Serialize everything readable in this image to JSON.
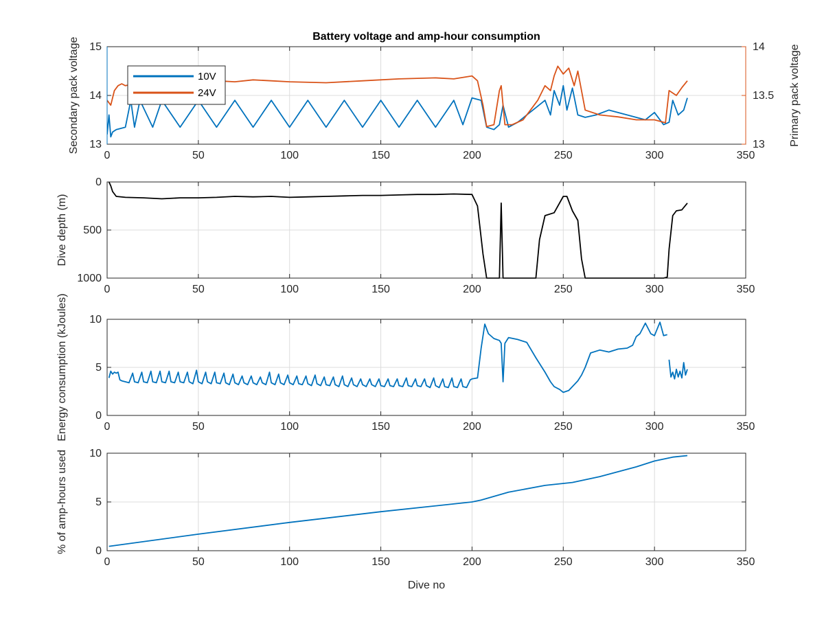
{
  "figure": {
    "title": "Battery voltage and amp-hour consumption"
  },
  "colors": {
    "blue": "#0072BD",
    "orange": "#D95319",
    "black": "#000000",
    "grid": "#dcdcdc",
    "axis": "#262626"
  },
  "chart_data": [
    {
      "type": "line",
      "title": "Battery voltage and amp-hour consumption",
      "xlabel": "",
      "xlim": [
        0,
        350
      ],
      "xticks": [
        0,
        50,
        100,
        150,
        200,
        250,
        300,
        350
      ],
      "ylabel": "Secondary pack voltage",
      "ylim": [
        13,
        15
      ],
      "yticks": [
        13,
        14,
        15
      ],
      "ylabel_right": "Primary pack voltage",
      "ylim_right": [
        13,
        14
      ],
      "yticks_right": [
        13,
        13.5,
        14
      ],
      "grid": true,
      "legend": "top-left",
      "series": [
        {
          "name": "10V",
          "axis": "left",
          "x": [
            0,
            1,
            2,
            3,
            5,
            10,
            13,
            15,
            18,
            25,
            30,
            40,
            50,
            60,
            70,
            80,
            90,
            100,
            110,
            120,
            130,
            140,
            150,
            160,
            170,
            180,
            190,
            195,
            200,
            205,
            208,
            212,
            215,
            217,
            220,
            225,
            230,
            235,
            240,
            243,
            245,
            248,
            250,
            252,
            255,
            258,
            262,
            268,
            275,
            285,
            295,
            300,
            305,
            308,
            310,
            313,
            316,
            318
          ],
          "y": [
            13.2,
            13.6,
            13.15,
            13.25,
            13.3,
            13.35,
            13.9,
            13.35,
            13.9,
            13.35,
            13.9,
            13.35,
            13.9,
            13.35,
            13.9,
            13.35,
            13.9,
            13.35,
            13.9,
            13.35,
            13.9,
            13.35,
            13.9,
            13.35,
            13.9,
            13.35,
            13.9,
            13.4,
            13.95,
            13.9,
            13.35,
            13.3,
            13.4,
            13.8,
            13.35,
            13.45,
            13.6,
            13.75,
            13.9,
            13.6,
            14.1,
            13.8,
            14.2,
            13.7,
            14.15,
            13.6,
            13.55,
            13.6,
            13.7,
            13.6,
            13.5,
            13.65,
            13.4,
            13.45,
            13.9,
            13.6,
            13.7,
            13.95
          ]
        },
        {
          "name": "24V",
          "axis": "right",
          "x": [
            0,
            2,
            4,
            6,
            8,
            10,
            15,
            20,
            30,
            40,
            50,
            60,
            70,
            80,
            90,
            100,
            120,
            140,
            160,
            180,
            190,
            200,
            203,
            206,
            208,
            212,
            215,
            216,
            218,
            222,
            228,
            232,
            236,
            240,
            243,
            245,
            247,
            250,
            253,
            256,
            258,
            262,
            270,
            280,
            290,
            300,
            306,
            308,
            312,
            315,
            318
          ],
          "y": [
            13.45,
            13.4,
            13.55,
            13.6,
            13.62,
            13.6,
            13.62,
            13.61,
            13.63,
            13.62,
            13.64,
            13.65,
            13.64,
            13.66,
            13.65,
            13.64,
            13.63,
            13.65,
            13.67,
            13.68,
            13.67,
            13.7,
            13.65,
            13.4,
            13.18,
            13.2,
            13.55,
            13.6,
            13.2,
            13.2,
            13.25,
            13.35,
            13.45,
            13.6,
            13.55,
            13.7,
            13.8,
            13.72,
            13.78,
            13.6,
            13.75,
            13.35,
            13.3,
            13.28,
            13.25,
            13.25,
            13.22,
            13.55,
            13.5,
            13.58,
            13.65
          ]
        }
      ]
    },
    {
      "type": "line",
      "xlabel": "",
      "xlim": [
        0,
        350
      ],
      "xticks": [
        0,
        50,
        100,
        150,
        200,
        250,
        300,
        350
      ],
      "ylabel": "Dive depth (m)",
      "ylim": [
        0,
        1000
      ],
      "yticks": [
        0,
        500,
        1000
      ],
      "yticklabels": [
        "0",
        "500",
        "1000"
      ],
      "y_reversed": true,
      "grid": true,
      "series": [
        {
          "name": "",
          "x": [
            1,
            2,
            3,
            5,
            10,
            20,
            30,
            40,
            50,
            60,
            70,
            80,
            90,
            100,
            110,
            120,
            130,
            140,
            150,
            160,
            170,
            180,
            190,
            200,
            203,
            206,
            208,
            210,
            212,
            215,
            216,
            217,
            218,
            220,
            230,
            235,
            237,
            240,
            245,
            250,
            252,
            255,
            258,
            260,
            262,
            270,
            280,
            290,
            300,
            305,
            307,
            308,
            310,
            312,
            315,
            318
          ],
          "y": [
            0,
            40,
            100,
            150,
            160,
            165,
            175,
            165,
            165,
            160,
            150,
            155,
            150,
            160,
            155,
            150,
            145,
            140,
            140,
            135,
            130,
            130,
            125,
            130,
            250,
            750,
            1000,
            1000,
            1000,
            1000,
            220,
            1000,
            1000,
            1000,
            1000,
            1000,
            600,
            350,
            320,
            150,
            150,
            300,
            400,
            800,
            1000,
            1000,
            1000,
            1000,
            1000,
            1000,
            990,
            700,
            350,
            300,
            290,
            220
          ]
        }
      ]
    },
    {
      "type": "line",
      "xlabel": "",
      "xlim": [
        0,
        350
      ],
      "xticks": [
        0,
        50,
        100,
        150,
        200,
        250,
        300,
        350
      ],
      "ylabel": "Energy consumption (kJoules)",
      "ylim": [
        0,
        10
      ],
      "yticks": [
        0,
        5,
        10
      ],
      "grid": true,
      "series": [
        {
          "name": "",
          "x": [
            1,
            2,
            3,
            4,
            5,
            6,
            7,
            8,
            10,
            12,
            14,
            15,
            17,
            19,
            20,
            22,
            24,
            25,
            27,
            29,
            30,
            32,
            34,
            35,
            37,
            39,
            40,
            42,
            44,
            45,
            47,
            49,
            50,
            52,
            54,
            55,
            57,
            59,
            60,
            62,
            64,
            65,
            67,
            69,
            70,
            72,
            74,
            75,
            77,
            79,
            80,
            82,
            84,
            85,
            87,
            89,
            90,
            92,
            94,
            95,
            97,
            99,
            100,
            102,
            104,
            105,
            107,
            109,
            110,
            112,
            114,
            115,
            117,
            119,
            120,
            122,
            124,
            125,
            127,
            129,
            130,
            132,
            134,
            135,
            137,
            139,
            140,
            142,
            144,
            145,
            147,
            149,
            150,
            152,
            154,
            155,
            157,
            159,
            160,
            162,
            164,
            165,
            167,
            169,
            170,
            172,
            174,
            175,
            177,
            179,
            180,
            182,
            184,
            185,
            187,
            189,
            190,
            192,
            194,
            195,
            197,
            199,
            200,
            203,
            205,
            207,
            209,
            212,
            215,
            216,
            217,
            218,
            220,
            225,
            230,
            235,
            240,
            243,
            245,
            248,
            250,
            253,
            255,
            258,
            260,
            262,
            265,
            270,
            275,
            280,
            285,
            288,
            290,
            292,
            295,
            298,
            300,
            303,
            305,
            307
          ],
          "y": [
            3.9,
            4.6,
            4.3,
            4.5,
            4.4,
            4.5,
            3.7,
            3.6,
            3.5,
            3.4,
            4.4,
            3.5,
            3.4,
            4.5,
            3.5,
            3.4,
            4.6,
            3.5,
            3.4,
            4.6,
            3.5,
            3.4,
            4.6,
            3.5,
            3.4,
            4.5,
            3.5,
            3.4,
            4.5,
            3.5,
            3.3,
            4.7,
            3.5,
            3.3,
            4.5,
            3.5,
            3.3,
            4.5,
            3.4,
            3.3,
            4.4,
            3.4,
            3.2,
            4.3,
            3.4,
            3.2,
            4.1,
            3.4,
            3.2,
            4.1,
            3.4,
            3.2,
            4.0,
            3.4,
            3.2,
            4.5,
            3.4,
            3.2,
            4.3,
            3.4,
            3.2,
            4.2,
            3.4,
            3.2,
            4.1,
            3.3,
            3.2,
            4.1,
            3.3,
            3.1,
            4.2,
            3.3,
            3.1,
            4.0,
            3.2,
            3.1,
            4.0,
            3.2,
            3.0,
            4.1,
            3.2,
            3.0,
            3.9,
            3.2,
            3.0,
            3.8,
            3.2,
            3.0,
            3.8,
            3.2,
            3.0,
            3.8,
            3.1,
            3.0,
            3.8,
            3.1,
            3.0,
            3.8,
            3.1,
            3.0,
            3.9,
            3.1,
            3.0,
            3.8,
            3.1,
            3.0,
            3.8,
            3.1,
            2.9,
            3.9,
            3.1,
            2.9,
            3.8,
            3.0,
            2.9,
            3.9,
            3.0,
            2.9,
            3.8,
            3.0,
            2.9,
            3.7,
            3.8,
            3.9,
            7.0,
            9.5,
            8.5,
            8.0,
            7.8,
            7.5,
            3.5,
            7.5,
            8.1,
            7.9,
            7.6,
            6.0,
            4.5,
            3.5,
            3.0,
            2.7,
            2.4,
            2.6,
            3.0,
            3.6,
            4.2,
            5.0,
            6.5,
            6.8,
            6.6,
            6.9,
            7.0,
            7.3,
            8.2,
            8.5,
            9.6,
            8.5,
            8.3,
            9.7,
            8.3,
            8.4
          ]
        },
        {
          "name": "",
          "x": [
            308,
            309,
            310,
            311,
            312,
            313,
            314,
            315,
            316,
            317,
            318
          ],
          "y": [
            5.8,
            4.0,
            4.5,
            3.8,
            4.8,
            4.0,
            4.6,
            3.9,
            5.5,
            4.2,
            4.8
          ]
        }
      ]
    },
    {
      "type": "line",
      "xlabel": "Dive no",
      "xlim": [
        0,
        350
      ],
      "xticks": [
        0,
        50,
        100,
        150,
        200,
        250,
        300,
        350
      ],
      "ylabel": "% of amp-hours used",
      "ylim": [
        0,
        10
      ],
      "yticks": [
        0,
        5,
        10
      ],
      "grid": true,
      "series": [
        {
          "name": "",
          "x": [
            1,
            50,
            100,
            150,
            200,
            205,
            220,
            240,
            255,
            270,
            290,
            300,
            310,
            318
          ],
          "y": [
            0.45,
            1.7,
            2.9,
            4.0,
            5.0,
            5.2,
            6.0,
            6.7,
            7.0,
            7.6,
            8.6,
            9.2,
            9.6,
            9.75
          ]
        }
      ]
    }
  ]
}
